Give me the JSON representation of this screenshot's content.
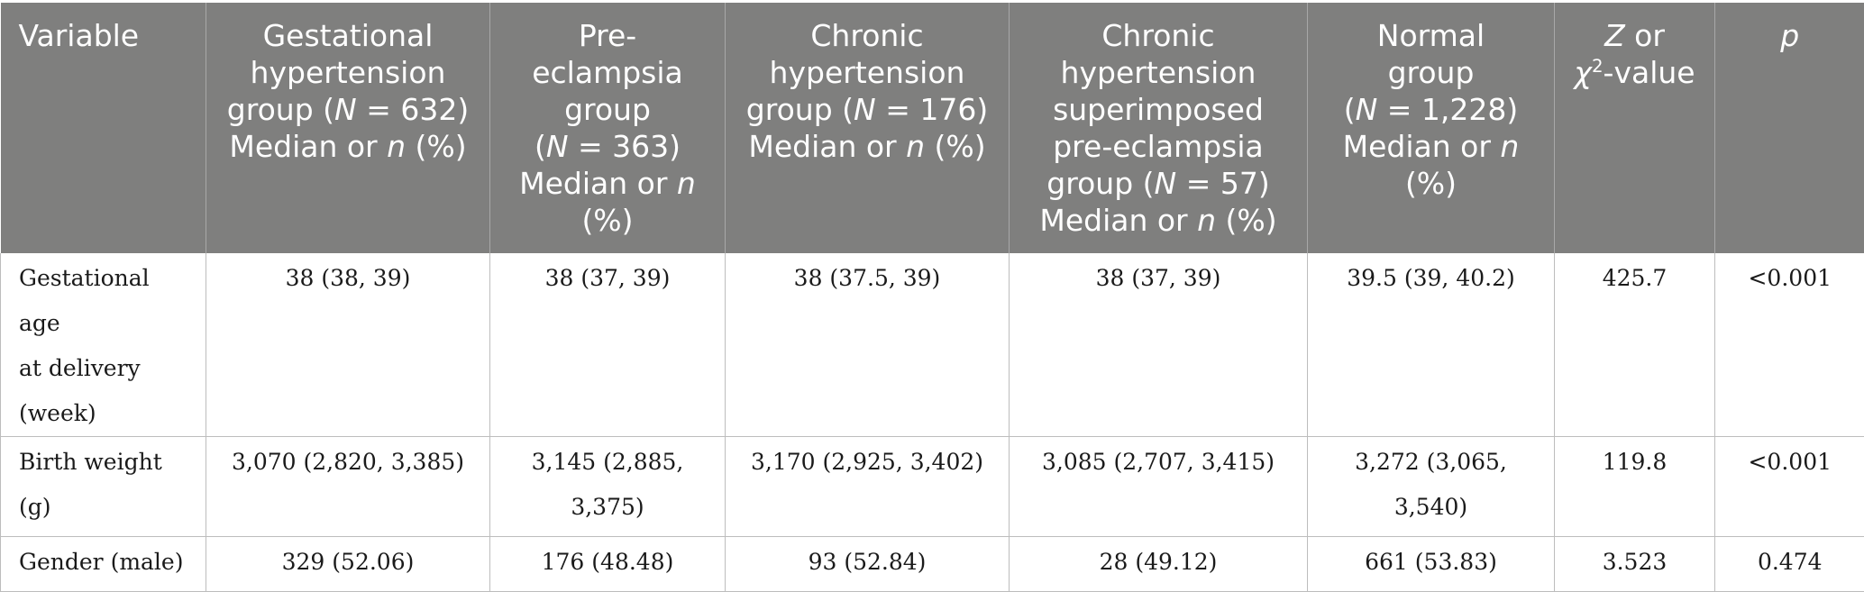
{
  "table": {
    "headers": {
      "variable": "Variable",
      "gestational": {
        "l1": "Gestational",
        "l2": "hypertension",
        "l3a": "group (",
        "n_sym": "N",
        "l3b": " = 632)",
        "l4a": "Median or ",
        "n_it": "n",
        "l4b": " (%)"
      },
      "preeclampsia": {
        "l1": "Pre-",
        "l2": "eclampsia",
        "l3": "group",
        "l4a": "(",
        "n_sym": "N",
        "l4b": " = 363)",
        "l5a": "Median or ",
        "n_it": "n",
        "l6": "(%)"
      },
      "chronic": {
        "l1": "Chronic",
        "l2": "hypertension",
        "l3a": "group (",
        "n_sym": "N",
        "l3b": " = 176)",
        "l4a": "Median or ",
        "n_it": "n",
        "l4b": " (%)"
      },
      "superimposed": {
        "l1": "Chronic",
        "l2": "hypertension",
        "l3": "superimposed",
        "l4": "pre-eclampsia",
        "l5a": "group (",
        "n_sym": "N",
        "l5b": " = 57)",
        "l6a": "Median or ",
        "n_it": "n",
        "l6b": " (%)"
      },
      "normal": {
        "l1": "Normal",
        "l2": "group",
        "l3a": "(",
        "n_sym": "N",
        "l3b": " = 1,228)",
        "l4a": "Median or ",
        "n_it": "n",
        "l5": "(%)"
      },
      "stat": {
        "z": "Z",
        "or": " or",
        "chi": "χ",
        "sup": "2",
        "value": "-value"
      },
      "p": "p"
    },
    "rows": [
      {
        "variable_l1": "Gestational age",
        "variable_l2": "at delivery",
        "variable_l3": "(week)",
        "gestational": "38 (38, 39)",
        "preeclampsia": "38 (37, 39)",
        "chronic": "38 (37.5, 39)",
        "superimposed": "38 (37, 39)",
        "normal": "39.5 (39, 40.2)",
        "stat": "425.7",
        "p": "<0.001"
      },
      {
        "variable": "Birth weight (g)",
        "gestational": "3,070 (2,820, 3,385)",
        "preeclampsia_l1": "3,145 (2,885,",
        "preeclampsia_l2": "3,375)",
        "chronic": "3,170 (2,925, 3,402)",
        "superimposed": "3,085 (2,707, 3,415)",
        "normal": "3,272 (3,065, 3,540)",
        "stat": "119.8",
        "p": "<0.001"
      },
      {
        "variable": "Gender (male)",
        "gestational": "329 (52.06)",
        "preeclampsia": "176 (48.48)",
        "chronic": "93 (52.84)",
        "superimposed": "28 (49.12)",
        "normal": "661 (53.83)",
        "stat": "3.523",
        "p": "0.474"
      }
    ]
  }
}
